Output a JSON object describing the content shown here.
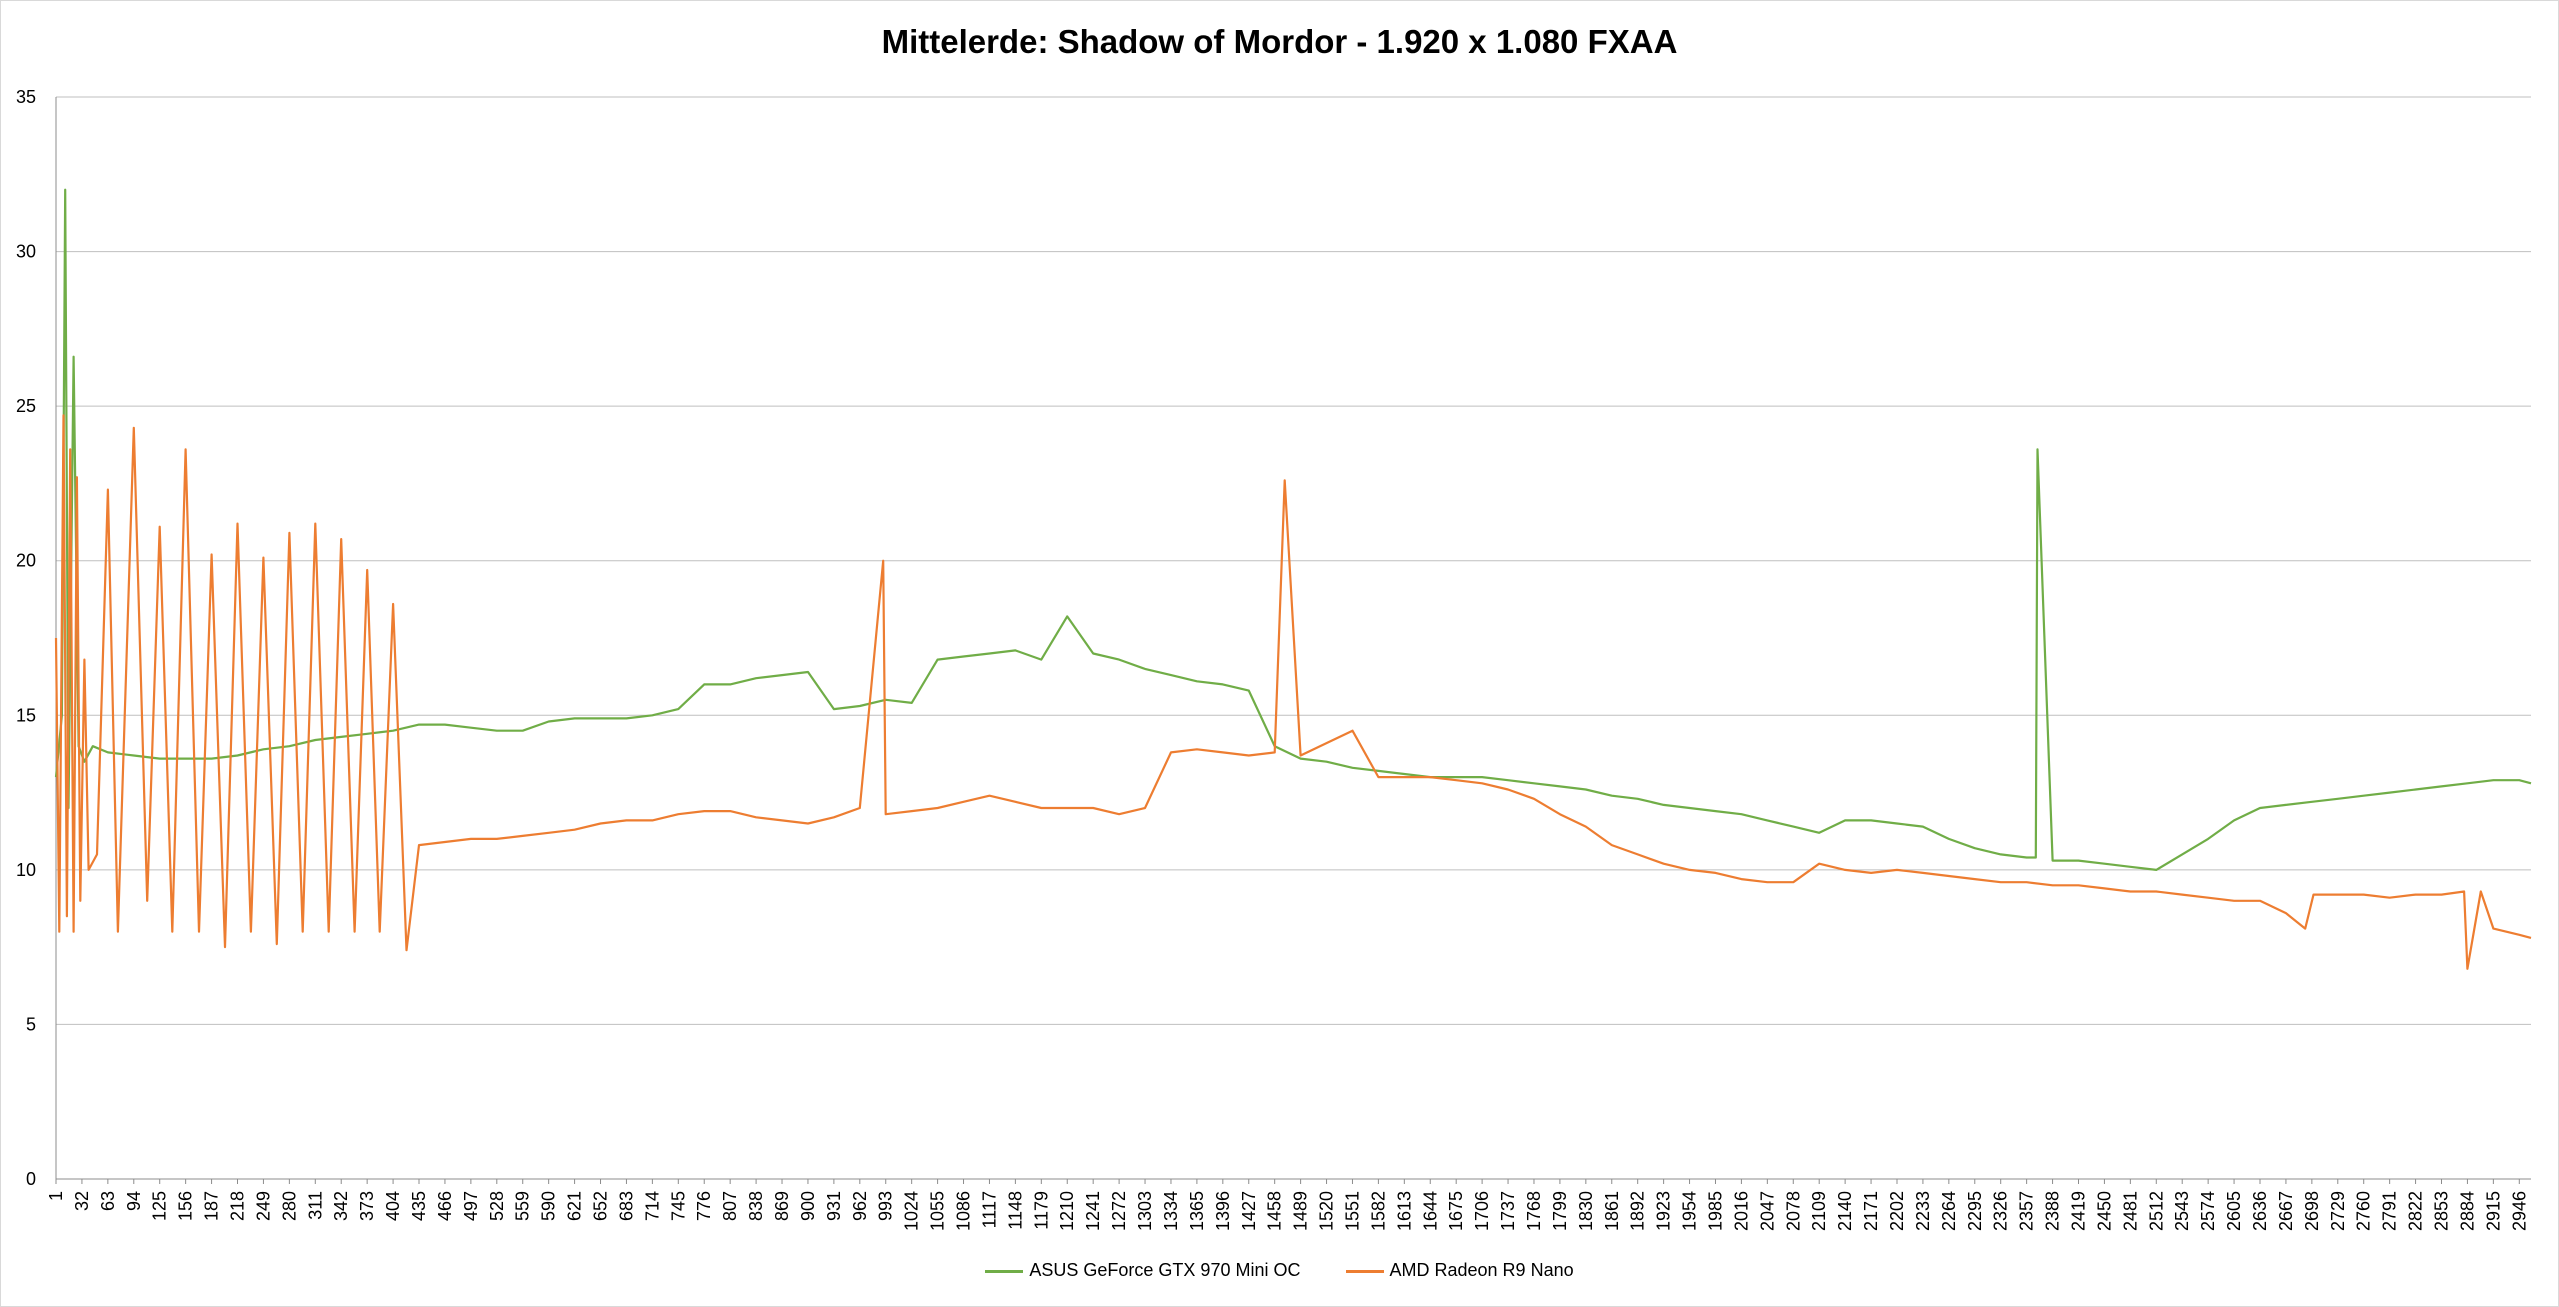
{
  "chart_data": {
    "type": "line",
    "title": "Mittelerde: Shadow of Mordor - 1.920 x 1.080 FXAA",
    "xlabel": "",
    "ylabel": "",
    "ylim": [
      0,
      35
    ],
    "yticks": [
      0,
      5,
      10,
      15,
      20,
      25,
      30,
      35
    ],
    "xlim": [
      1,
      2960
    ],
    "xtick_labels": [
      "1",
      "32",
      "63",
      "94",
      "125",
      "156",
      "187",
      "218",
      "249",
      "280",
      "311",
      "342",
      "373",
      "404",
      "435",
      "466",
      "497",
      "528",
      "559",
      "590",
      "621",
      "652",
      "683",
      "714",
      "745",
      "776",
      "807",
      "838",
      "869",
      "900",
      "931",
      "962",
      "993",
      "1024",
      "1055",
      "1086",
      "1117",
      "1148",
      "1179",
      "1210",
      "1241",
      "1272",
      "1303",
      "1334",
      "1365",
      "1396",
      "1427",
      "1458",
      "1489",
      "1520",
      "1551",
      "1582",
      "1613",
      "1644",
      "1675",
      "1706",
      "1737",
      "1768",
      "1799",
      "1830",
      "1861",
      "1892",
      "1923",
      "1954",
      "1985",
      "2016",
      "2047",
      "2078",
      "2109",
      "2140",
      "2171",
      "2202",
      "2233",
      "2264",
      "2295",
      "2326",
      "2357",
      "2388",
      "2419",
      "2450",
      "2481",
      "2512",
      "2543",
      "2574",
      "2605",
      "2636",
      "2667",
      "2698",
      "2729",
      "2760",
      "2791",
      "2822",
      "2853",
      "2884",
      "2915",
      "2946"
    ],
    "grid": "horizontal",
    "legend": "bottom",
    "series": [
      {
        "name": "ASUS GeForce GTX 970 Mini OC",
        "color": "#70ad47",
        "x": [
          1,
          8,
          12,
          16,
          22,
          28,
          35,
          45,
          63,
          94,
          125,
          156,
          187,
          218,
          249,
          280,
          311,
          342,
          373,
          404,
          435,
          466,
          497,
          528,
          559,
          590,
          621,
          652,
          683,
          714,
          745,
          776,
          807,
          838,
          869,
          900,
          931,
          962,
          993,
          1024,
          1055,
          1086,
          1117,
          1148,
          1179,
          1210,
          1241,
          1272,
          1303,
          1334,
          1365,
          1396,
          1427,
          1458,
          1489,
          1520,
          1551,
          1582,
          1613,
          1644,
          1675,
          1706,
          1737,
          1768,
          1799,
          1830,
          1861,
          1892,
          1923,
          1954,
          1985,
          2016,
          2047,
          2078,
          2109,
          2140,
          2171,
          2202,
          2233,
          2264,
          2295,
          2326,
          2357,
          2368,
          2370,
          2388,
          2419,
          2450,
          2481,
          2512,
          2543,
          2574,
          2605,
          2636,
          2667,
          2698,
          2729,
          2760,
          2791,
          2822,
          2853,
          2884,
          2915,
          2946,
          2960
        ],
        "values": [
          13,
          15,
          32,
          12,
          26.6,
          14,
          13.5,
          14,
          13.8,
          13.7,
          13.6,
          13.6,
          13.6,
          13.7,
          13.9,
          14.0,
          14.2,
          14.3,
          14.4,
          14.5,
          14.7,
          14.7,
          14.6,
          14.5,
          14.5,
          14.8,
          14.9,
          14.9,
          14.9,
          15.0,
          15.2,
          16.0,
          16.0,
          16.2,
          16.3,
          16.4,
          15.2,
          15.3,
          15.5,
          15.4,
          16.8,
          16.9,
          17.0,
          17.1,
          16.8,
          18.2,
          17.0,
          16.8,
          16.5,
          16.3,
          16.1,
          16.0,
          15.8,
          14.0,
          13.6,
          13.5,
          13.3,
          13.2,
          13.1,
          13.0,
          13.0,
          13.0,
          12.9,
          12.8,
          12.7,
          12.6,
          12.4,
          12.3,
          12.1,
          12.0,
          11.9,
          11.8,
          11.6,
          11.4,
          11.2,
          11.6,
          11.6,
          11.5,
          11.4,
          11.0,
          10.7,
          10.5,
          10.4,
          10.4,
          23.6,
          10.3,
          10.3,
          10.2,
          10.1,
          10.0,
          10.5,
          11.0,
          11.6,
          12.0,
          12.1,
          12.2,
          12.3,
          12.4,
          12.5,
          12.6,
          12.7,
          12.8,
          12.9,
          12.9,
          12.8
        ]
      },
      {
        "name": "AMD Radeon R9 Nano",
        "color": "#ed7d31",
        "x": [
          1,
          5,
          10,
          14,
          18,
          22,
          26,
          30,
          35,
          40,
          50,
          63,
          75,
          94,
          110,
          125,
          140,
          156,
          172,
          187,
          203,
          218,
          234,
          249,
          265,
          280,
          296,
          311,
          327,
          342,
          358,
          373,
          388,
          404,
          420,
          435,
          466,
          497,
          528,
          559,
          590,
          621,
          652,
          683,
          714,
          745,
          776,
          807,
          838,
          869,
          900,
          931,
          962,
          990,
          993,
          1024,
          1055,
          1086,
          1117,
          1148,
          1179,
          1210,
          1241,
          1272,
          1303,
          1334,
          1365,
          1396,
          1427,
          1458,
          1470,
          1489,
          1520,
          1551,
          1582,
          1613,
          1644,
          1675,
          1706,
          1737,
          1768,
          1799,
          1830,
          1861,
          1892,
          1923,
          1954,
          1985,
          2016,
          2047,
          2078,
          2109,
          2140,
          2171,
          2202,
          2233,
          2264,
          2295,
          2326,
          2357,
          2388,
          2419,
          2450,
          2481,
          2512,
          2543,
          2574,
          2605,
          2636,
          2667,
          2690,
          2700,
          2729,
          2760,
          2791,
          2822,
          2853,
          2880,
          2884,
          2900,
          2915,
          2946,
          2960
        ],
        "values": [
          17.5,
          8,
          24.7,
          8.5,
          23.6,
          8,
          22.7,
          9,
          16.8,
          10,
          10.5,
          22.3,
          8,
          24.3,
          9,
          21.1,
          8,
          23.6,
          8,
          20.2,
          7.5,
          21.2,
          8,
          20.1,
          7.6,
          20.9,
          8,
          21.2,
          8,
          20.7,
          8,
          19.7,
          8,
          18.6,
          7.4,
          10.8,
          10.9,
          11.0,
          11.0,
          11.1,
          11.2,
          11.3,
          11.5,
          11.6,
          11.6,
          11.8,
          11.9,
          11.9,
          11.7,
          11.6,
          11.5,
          11.7,
          12.0,
          20.0,
          11.8,
          11.9,
          12.0,
          12.2,
          12.4,
          12.2,
          12.0,
          12.0,
          12.0,
          11.8,
          12.0,
          13.8,
          13.9,
          13.8,
          13.7,
          13.8,
          22.6,
          13.7,
          14.1,
          14.5,
          13.0,
          13.0,
          13.0,
          12.9,
          12.8,
          12.6,
          12.3,
          11.8,
          11.4,
          10.8,
          10.5,
          10.2,
          10.0,
          9.9,
          9.7,
          9.6,
          9.6,
          10.2,
          10.0,
          9.9,
          10.0,
          9.9,
          9.8,
          9.7,
          9.6,
          9.6,
          9.5,
          9.5,
          9.4,
          9.3,
          9.3,
          9.2,
          9.1,
          9.0,
          9.0,
          8.6,
          8.1,
          9.2,
          9.2,
          9.2,
          9.1,
          9.2,
          9.2,
          9.3,
          6.8,
          9.3,
          8.1,
          7.9,
          7.8
        ]
      }
    ]
  }
}
